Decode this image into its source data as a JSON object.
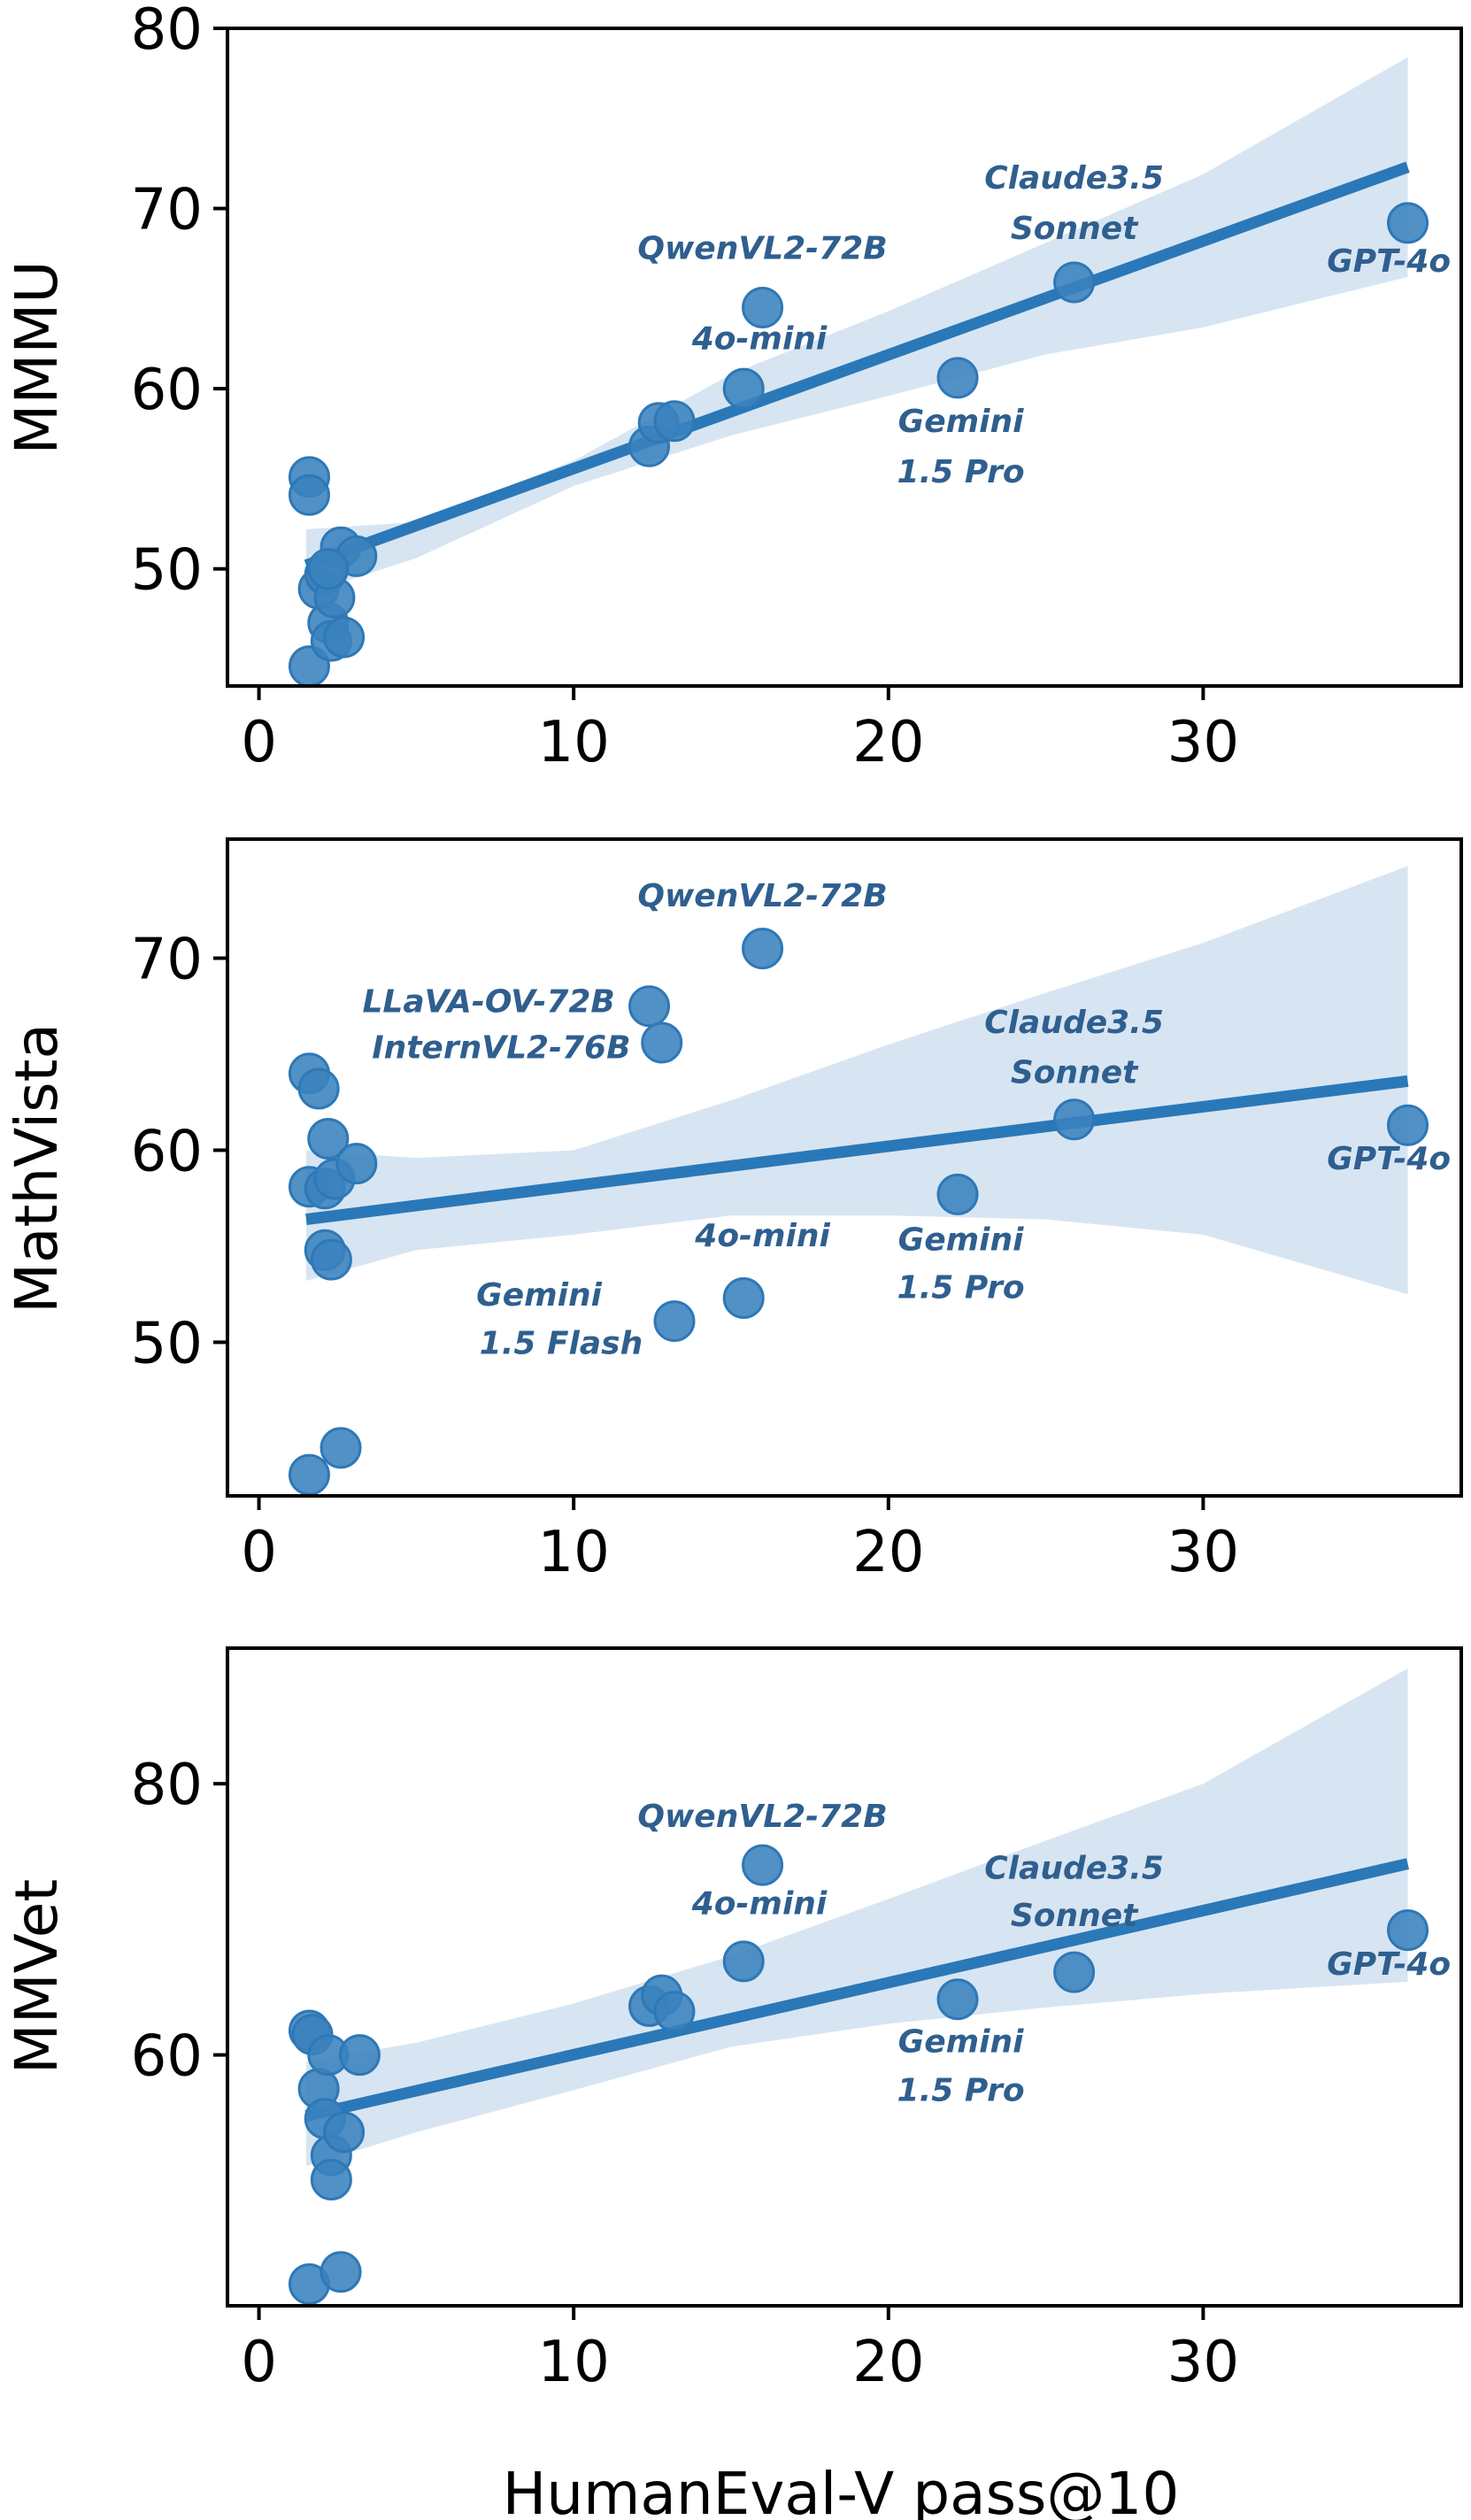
{
  "colors": {
    "point": "#3a82be",
    "point_edge": "#2e78b7",
    "line": "#2a78b8",
    "band": "#c9dcee",
    "annotation": "#2f5f8f"
  },
  "shared": {
    "xlabel": "HumanEval-V pass@10"
  },
  "chart_data": [
    {
      "type": "scatter",
      "ylabel": "MMMU",
      "xlabel": "",
      "xlim": [
        -1,
        38.2
      ],
      "ylim": [
        43.5,
        80
      ],
      "xticks": [
        0,
        10,
        20,
        30
      ],
      "yticks": [
        50,
        60,
        70,
        80
      ],
      "points": [
        {
          "x": 1.6,
          "y": 55.1
        },
        {
          "x": 1.6,
          "y": 54.1
        },
        {
          "x": 1.6,
          "y": 44.6
        },
        {
          "x": 1.9,
          "y": 48.9
        },
        {
          "x": 2.1,
          "y": 49.7
        },
        {
          "x": 2.2,
          "y": 47.0
        },
        {
          "x": 2.3,
          "y": 46.0
        },
        {
          "x": 2.4,
          "y": 48.4
        },
        {
          "x": 2.6,
          "y": 51.2
        },
        {
          "x": 2.7,
          "y": 46.2
        },
        {
          "x": 3.1,
          "y": 50.7
        },
        {
          "x": 2.2,
          "y": 50.0
        },
        {
          "x": 12.4,
          "y": 56.8
        },
        {
          "x": 12.7,
          "y": 58.1
        },
        {
          "x": 13.2,
          "y": 58.2
        },
        {
          "x": 15.4,
          "y": 60.0
        },
        {
          "x": 16.0,
          "y": 64.5
        },
        {
          "x": 22.2,
          "y": 60.6
        },
        {
          "x": 25.9,
          "y": 65.9
        },
        {
          "x": 36.5,
          "y": 69.2
        }
      ],
      "fit": {
        "x": [
          1.5,
          36.5
        ],
        "y": [
          50.2,
          72.3
        ]
      },
      "band": {
        "x": [
          1.5,
          5,
          10,
          15,
          20,
          25,
          30,
          36.5
        ],
        "upper": [
          52.2,
          52.6,
          56.0,
          60.8,
          64.3,
          68.1,
          71.9,
          78.4
        ],
        "lower": [
          48.6,
          50.6,
          54.6,
          57.4,
          59.6,
          61.9,
          63.4,
          66.2
        ]
      },
      "annotations": [
        {
          "text": "QwenVL2-72B",
          "x": 16.0,
          "y": 67.2
        },
        {
          "text": "4o-mini",
          "x": 15.9,
          "y": 62.2
        },
        {
          "text": "Claude3.5",
          "x": 25.9,
          "y": 71.1
        },
        {
          "text": "Sonnet",
          "x": 25.9,
          "y": 68.3
        },
        {
          "text": "GPT-4o",
          "x": 35.9,
          "y": 66.5
        },
        {
          "text": "Gemini",
          "x": 22.3,
          "y": 57.6
        },
        {
          "text": "1.5 Pro",
          "x": 22.3,
          "y": 54.8
        }
      ]
    },
    {
      "type": "scatter",
      "ylabel": "MathVista",
      "xlabel": "",
      "xlim": [
        -1,
        38.2
      ],
      "ylim": [
        42,
        76.2
      ],
      "xticks": [
        0,
        10,
        20,
        30
      ],
      "yticks": [
        50,
        60,
        70
      ],
      "points": [
        {
          "x": 1.6,
          "y": 64.0
        },
        {
          "x": 1.9,
          "y": 63.2
        },
        {
          "x": 1.6,
          "y": 58.1
        },
        {
          "x": 2.1,
          "y": 58.0
        },
        {
          "x": 2.2,
          "y": 60.6
        },
        {
          "x": 2.4,
          "y": 58.5
        },
        {
          "x": 2.1,
          "y": 54.8
        },
        {
          "x": 2.3,
          "y": 54.3
        },
        {
          "x": 3.1,
          "y": 59.3
        },
        {
          "x": 1.6,
          "y": 43.1
        },
        {
          "x": 2.6,
          "y": 44.5
        },
        {
          "x": 12.4,
          "y": 67.5
        },
        {
          "x": 12.8,
          "y": 65.6
        },
        {
          "x": 16.0,
          "y": 70.5
        },
        {
          "x": 13.2,
          "y": 51.1
        },
        {
          "x": 15.4,
          "y": 52.3
        },
        {
          "x": 22.2,
          "y": 57.7
        },
        {
          "x": 25.9,
          "y": 61.6
        },
        {
          "x": 36.5,
          "y": 61.3
        }
      ],
      "fit": {
        "x": [
          1.5,
          36.5
        ],
        "y": [
          56.4,
          63.6
        ]
      },
      "band": {
        "x": [
          1.5,
          5,
          10,
          15,
          20,
          25,
          30,
          36.5
        ],
        "upper": [
          60.0,
          59.6,
          60.0,
          62.6,
          65.5,
          68.2,
          70.8,
          74.8
        ],
        "lower": [
          53.2,
          54.8,
          55.6,
          56.6,
          56.6,
          56.4,
          55.6,
          52.5
        ]
      },
      "annotations": [
        {
          "text": "QwenVL2-72B",
          "x": 16.0,
          "y": 72.7
        },
        {
          "text": "LLaVA-OV-72B",
          "x": 7.3,
          "y": 67.2
        },
        {
          "text": "InternVL2-76B",
          "x": 7.7,
          "y": 64.8
        },
        {
          "text": "Claude3.5",
          "x": 25.9,
          "y": 66.1
        },
        {
          "text": "Sonnet",
          "x": 25.9,
          "y": 63.5
        },
        {
          "text": "GPT-4o",
          "x": 35.9,
          "y": 59.0
        },
        {
          "text": "Gemini",
          "x": 22.3,
          "y": 54.8
        },
        {
          "text": "1.5 Pro",
          "x": 22.3,
          "y": 52.3
        },
        {
          "text": "4o-mini",
          "x": 16.0,
          "y": 55.0
        },
        {
          "text": "Gemini",
          "x": 8.9,
          "y": 51.9
        },
        {
          "text": "1.5 Flash",
          "x": 9.6,
          "y": 49.4
        }
      ]
    },
    {
      "type": "scatter",
      "ylabel": "MMVet",
      "xlabel": "HumanEval-V pass@10",
      "xlim": [
        -1,
        38.2
      ],
      "ylim": [
        41.5,
        90
      ],
      "xticks": [
        0,
        10,
        20,
        30
      ],
      "yticks": [
        60,
        80
      ],
      "points": [
        {
          "x": 1.6,
          "y": 61.8
        },
        {
          "x": 1.7,
          "y": 61.5
        },
        {
          "x": 1.9,
          "y": 57.5
        },
        {
          "x": 2.1,
          "y": 55.3
        },
        {
          "x": 2.2,
          "y": 60.0
        },
        {
          "x": 2.3,
          "y": 52.6
        },
        {
          "x": 2.3,
          "y": 50.8
        },
        {
          "x": 2.7,
          "y": 54.3
        },
        {
          "x": 3.2,
          "y": 60.0
        },
        {
          "x": 1.6,
          "y": 43.1
        },
        {
          "x": 2.6,
          "y": 44.0
        },
        {
          "x": 12.4,
          "y": 63.6
        },
        {
          "x": 12.8,
          "y": 64.4
        },
        {
          "x": 13.2,
          "y": 63.2
        },
        {
          "x": 15.4,
          "y": 66.9
        },
        {
          "x": 16.0,
          "y": 74.0
        },
        {
          "x": 22.2,
          "y": 64.1
        },
        {
          "x": 25.9,
          "y": 66.1
        },
        {
          "x": 36.5,
          "y": 69.2
        }
      ],
      "fit": {
        "x": [
          1.5,
          36.5
        ],
        "y": [
          55.5,
          74.1
        ]
      },
      "band": {
        "x": [
          1.5,
          5,
          10,
          15,
          20,
          25,
          30,
          36.5
        ],
        "upper": [
          59.5,
          60.9,
          63.8,
          67.3,
          71.5,
          75.8,
          80.0,
          88.5
        ],
        "lower": [
          51.8,
          54.3,
          57.4,
          60.6,
          62.3,
          63.5,
          64.5,
          65.4
        ]
      },
      "annotations": [
        {
          "text": "QwenVL2-72B",
          "x": 16.0,
          "y": 76.8
        },
        {
          "text": "4o-mini",
          "x": 15.9,
          "y": 70.4
        },
        {
          "text": "Claude3.5",
          "x": 25.9,
          "y": 73.0
        },
        {
          "text": "Sonnet",
          "x": 25.9,
          "y": 69.5
        },
        {
          "text": "GPT-4o",
          "x": 35.9,
          "y": 65.9
        },
        {
          "text": "Gemini",
          "x": 22.3,
          "y": 60.2
        },
        {
          "text": "1.5 Pro",
          "x": 22.3,
          "y": 56.6
        }
      ]
    }
  ]
}
